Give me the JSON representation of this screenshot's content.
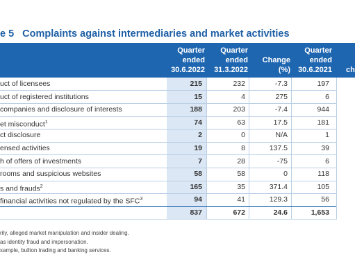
{
  "header": {
    "number": "e 5",
    "title": "Complaints against intermediaries and market activities"
  },
  "table": {
    "columns": [
      [
        "Quarter",
        "ended",
        "30.6.2022"
      ],
      [
        "Quarter",
        "ended",
        "31.3.2022"
      ],
      [
        "Change",
        "(%)"
      ],
      [
        "Quarter",
        "ended",
        "30.6.2021"
      ],
      [
        "ch"
      ]
    ],
    "rows": [
      {
        "label": "uct of licensees",
        "cells": [
          "215",
          "232",
          "-7.3",
          "197"
        ]
      },
      {
        "label": "uct of registered institutions",
        "cells": [
          "15",
          "4",
          "275",
          "6"
        ]
      },
      {
        "label": "companies and disclosure of interests",
        "cells": [
          "188",
          "203",
          "-7.4",
          "944"
        ]
      },
      {
        "label": "et misconduct",
        "note": "1",
        "cells": [
          "74",
          "63",
          "17.5",
          "181"
        ]
      },
      {
        "label": "ct disclosure",
        "cells": [
          "2",
          "0",
          "N/A",
          "1"
        ]
      },
      {
        "label": "ensed activities",
        "cells": [
          "19",
          "8",
          "137.5",
          "39"
        ]
      },
      {
        "label": "h of offers of investments",
        "cells": [
          "7",
          "28",
          "-75",
          "6"
        ]
      },
      {
        "label": "rooms and suspicious websites",
        "cells": [
          "58",
          "58",
          "0",
          "118"
        ]
      },
      {
        "label": "s and frauds",
        "note": "2",
        "cells": [
          "165",
          "35",
          "371.4",
          "105"
        ]
      },
      {
        "label": "financial activities not regulated by the SFC",
        "note": "3",
        "cells": [
          "94",
          "41",
          "129.3",
          "56"
        ]
      },
      {
        "cells": [
          "837",
          "672",
          "24.6",
          "1,653"
        ]
      }
    ]
  },
  "footnotes": [
    "rily, alleged market manipulation and insider dealing.",
    "as identity fraud and impersonation.",
    "xample, bullion trading and banking services."
  ]
}
